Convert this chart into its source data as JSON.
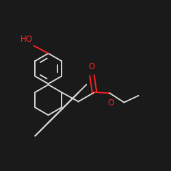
{
  "background_color": "#1a1a1a",
  "bond_color": "#d8d8d8",
  "oxygen_color": "#ff2222",
  "line_width": 1.4,
  "font_size": 8.5,
  "figsize": [
    2.5,
    2.5
  ],
  "dpi": 100,
  "xlim": [
    0,
    10
  ],
  "ylim": [
    0,
    10
  ]
}
